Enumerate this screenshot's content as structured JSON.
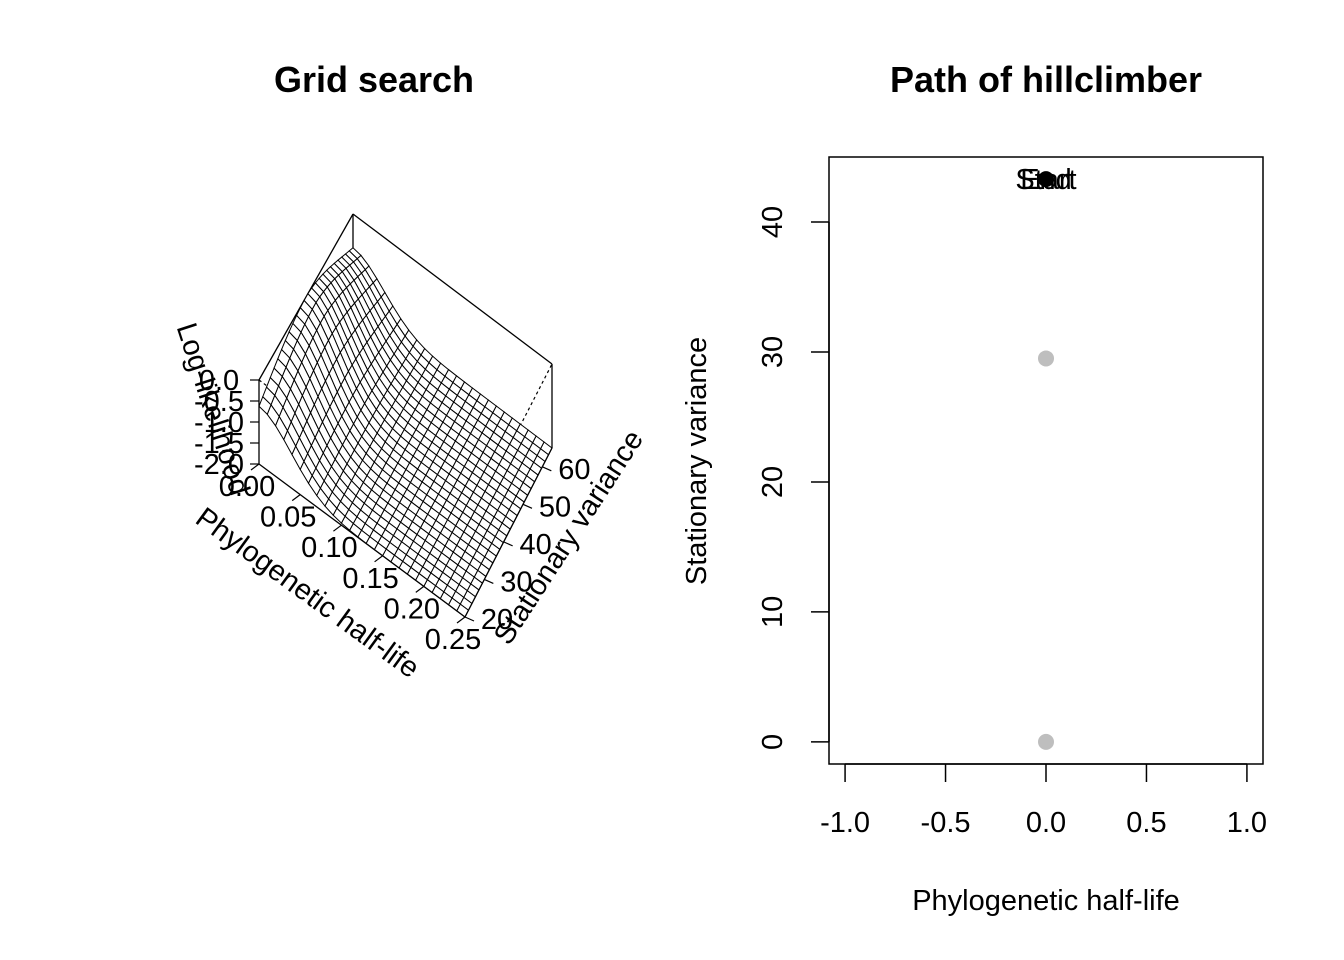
{
  "chart_data": [
    {
      "type": "surface",
      "title": "Grid search",
      "xlabel": "Phylogenetic half-life",
      "ylabel": "Stationary variance",
      "zlabel": "Log-likelihood",
      "x_ticks": [
        "0.00",
        "0.05",
        "0.10",
        "0.15",
        "0.20",
        "0.25"
      ],
      "y_ticks": [
        "20",
        "30",
        "40",
        "50",
        "60"
      ],
      "z_ticks": [
        "0.0",
        "-0.5",
        "-1.0",
        "-1.5",
        "-2.0"
      ],
      "xlim": [
        0,
        0.25
      ],
      "ylim": [
        20,
        65
      ],
      "zlim": [
        -2.0,
        0.0
      ],
      "grid_resolution": 25,
      "surface": {
        "peak_half_life": 0.0,
        "peak_variance": 43.3,
        "peak_loglik": 0.0,
        "note_shape": "ridge along half-life = 0 falling off with increasing half-life"
      }
    },
    {
      "type": "scatter",
      "title": "Path of hillclimber",
      "xlabel": "Phylogenetic half-life",
      "ylabel": "Stationary variance",
      "xlim": [
        -1.0,
        1.0
      ],
      "ylim": [
        0,
        45
      ],
      "x_ticks": [
        "-1.0",
        "-0.5",
        "0.0",
        "0.5",
        "1.0"
      ],
      "y_ticks": [
        "0",
        "10",
        "20",
        "30",
        "40"
      ],
      "points": [
        {
          "x": 0.0,
          "y": 0.0,
          "color": "#bebebe"
        },
        {
          "x": 0.0,
          "y": 29.5,
          "color": "#bebebe"
        },
        {
          "x": 0.0,
          "y": 43.3,
          "color": "#000000"
        }
      ],
      "annotations": [
        {
          "text": "Start",
          "x": 0.0,
          "y": 43.3
        },
        {
          "text": "End",
          "x": 0.0,
          "y": 43.3
        }
      ]
    }
  ]
}
